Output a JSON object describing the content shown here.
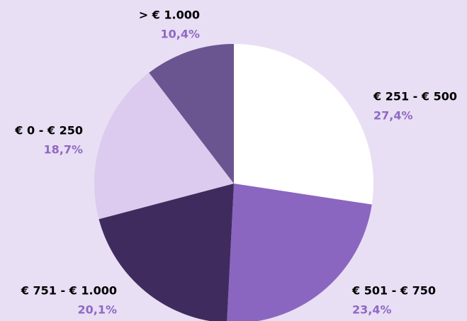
{
  "chart_data": {
    "type": "pie",
    "categories": [
      "€ 251 - € 500",
      "€ 501 - € 750",
      "€ 751 - € 1.000",
      "€ 0 - € 250",
      "> € 1.000"
    ],
    "values": [
      27.4,
      23.4,
      20.1,
      18.7,
      10.4
    ],
    "value_labels": [
      "27,4%",
      "23,4%",
      "20,1%",
      "18,7%",
      "10,4%"
    ],
    "colors": [
      "#ffffff",
      "#8a66c0",
      "#3f2b5d",
      "#dccbee",
      "#6a5590"
    ]
  }
}
